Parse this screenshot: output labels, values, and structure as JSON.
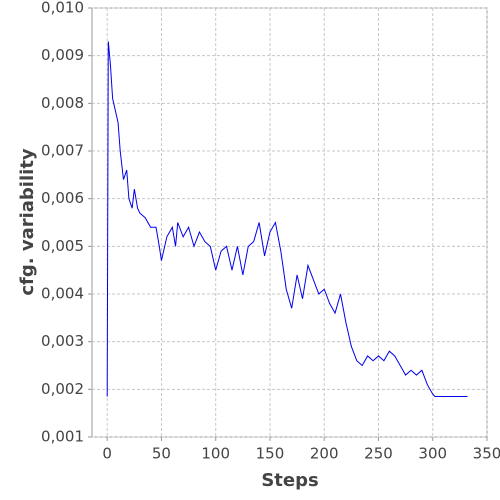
{
  "chart_data": {
    "type": "line",
    "xlabel": "Steps",
    "ylabel": "cfg. variability",
    "xlim": [
      -14,
      350
    ],
    "ylim": [
      0.001,
      0.01
    ],
    "xticks": [
      0,
      50,
      100,
      150,
      200,
      250,
      300,
      350
    ],
    "yticks": [
      {
        "value": 0.001,
        "label": "0,001"
      },
      {
        "value": 0.002,
        "label": "0,002"
      },
      {
        "value": 0.003,
        "label": "0,003"
      },
      {
        "value": 0.004,
        "label": "0,004"
      },
      {
        "value": 0.005,
        "label": "0,005"
      },
      {
        "value": 0.006,
        "label": "0,006"
      },
      {
        "value": 0.007,
        "label": "0,007"
      },
      {
        "value": 0.008,
        "label": "0,008"
      },
      {
        "value": 0.009,
        "label": "0,009"
      },
      {
        "value": 0.01,
        "label": "0,010"
      }
    ],
    "grid": true,
    "x": [
      0,
      1,
      3,
      5,
      8,
      10,
      12,
      15,
      18,
      20,
      23,
      25,
      28,
      30,
      35,
      40,
      45,
      48,
      50,
      55,
      60,
      63,
      65,
      70,
      75,
      80,
      85,
      90,
      95,
      100,
      105,
      110,
      115,
      120,
      125,
      130,
      135,
      140,
      145,
      150,
      155,
      160,
      165,
      170,
      175,
      180,
      185,
      190,
      195,
      200,
      205,
      210,
      215,
      220,
      225,
      230,
      235,
      240,
      245,
      250,
      255,
      260,
      265,
      270,
      275,
      280,
      285,
      290,
      295,
      300,
      302,
      332
    ],
    "series": [
      {
        "color": "#0000ee",
        "values": [
          0.00185,
          0.0093,
          0.0088,
          0.0081,
          0.0078,
          0.0076,
          0.007,
          0.0064,
          0.0066,
          0.006,
          0.0058,
          0.0062,
          0.0058,
          0.0057,
          0.0056,
          0.0054,
          0.0054,
          0.005,
          0.0047,
          0.0052,
          0.0054,
          0.005,
          0.0055,
          0.0052,
          0.0054,
          0.005,
          0.0053,
          0.0051,
          0.005,
          0.0045,
          0.0049,
          0.005,
          0.0045,
          0.005,
          0.0044,
          0.005,
          0.0051,
          0.0055,
          0.0048,
          0.0053,
          0.0055,
          0.0049,
          0.0041,
          0.0037,
          0.0044,
          0.0039,
          0.0046,
          0.0043,
          0.004,
          0.0041,
          0.0038,
          0.0036,
          0.004,
          0.0034,
          0.0029,
          0.0026,
          0.0025,
          0.0027,
          0.0026,
          0.0027,
          0.0026,
          0.0028,
          0.0027,
          0.0025,
          0.0023,
          0.0024,
          0.0023,
          0.0024,
          0.0021,
          0.0019,
          0.00185,
          0.00185
        ]
      }
    ]
  }
}
